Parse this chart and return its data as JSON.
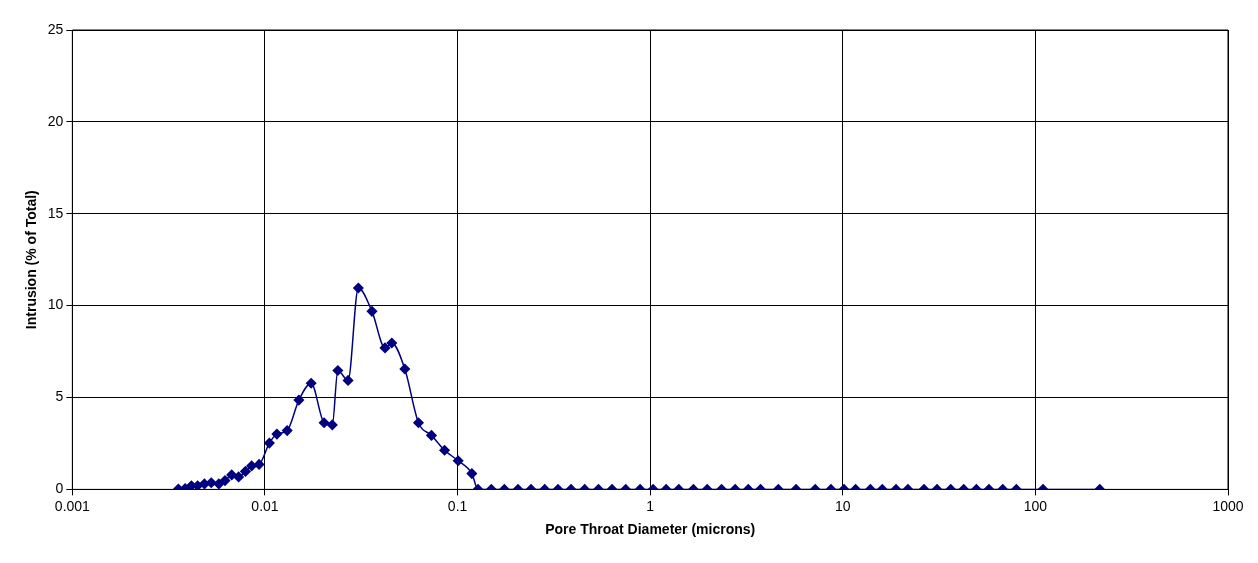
{
  "chart_data": {
    "type": "line",
    "xlabel": "Pore Throat Diameter (microns)",
    "ylabel": "Intrusion (% of Total)",
    "log": "x",
    "xlim": [
      0.001,
      1000
    ],
    "xticks": [
      0.001,
      0.01,
      0.1,
      1,
      10,
      100,
      1000
    ],
    "ylim": [
      0,
      25
    ],
    "yticks": [
      0,
      5,
      10,
      15,
      20,
      25
    ],
    "grid": true,
    "legend": false,
    "marker": "diamond",
    "line_style": "solid",
    "x": [
      0.00355,
      0.00385,
      0.00415,
      0.00447,
      0.00485,
      0.00526,
      0.00576,
      0.0062,
      0.00672,
      0.0073,
      0.00792,
      0.00853,
      0.00932,
      0.01054,
      0.01153,
      0.01304,
      0.015,
      0.01737,
      0.02027,
      0.02236,
      0.02389,
      0.027,
      0.03053,
      0.03594,
      0.04201,
      0.04555,
      0.05323,
      0.06266,
      0.07322,
      0.08557,
      0.1007,
      0.1186,
      0.1277,
      0.1497,
      0.175,
      0.206,
      0.2407,
      0.2835,
      0.3323,
      0.3884,
      0.4573,
      0.5389,
      0.6342,
      0.7468,
      0.8868,
      1.036,
      1.211,
      1.408,
      1.678,
      1.978,
      2.349,
      2.764,
      3.231,
      3.743,
      4.628,
      5.722,
      7.196,
      8.686,
      10.15,
      11.66,
      13.91,
      16.04,
      18.9,
      21.79,
      26.42,
      30.87,
      36.36,
      42.47,
      49.4,
      57.43,
      67.71,
      79.68,
      109.6,
      216
    ],
    "series": [
      {
        "color": "#000080",
        "values": [
          0.02,
          0.05,
          0.2,
          0.2,
          0.3,
          0.36,
          0.3,
          0.48,
          0.79,
          0.68,
          0.98,
          1.28,
          1.36,
          2.52,
          3.01,
          3.2,
          4.86,
          5.78,
          3.63,
          3.51,
          6.47,
          5.93,
          10.96,
          9.69,
          7.7,
          7.97,
          6.55,
          3.63,
          2.94,
          2.13,
          1.56,
          0.86,
          0,
          0,
          0,
          0,
          0,
          0,
          0,
          0,
          0,
          0,
          0,
          0,
          0,
          0,
          0,
          0,
          0,
          0,
          0,
          0,
          0,
          0,
          0,
          0,
          0,
          0,
          0,
          0,
          0,
          0,
          0,
          0,
          0,
          0,
          0,
          0,
          0,
          0,
          0,
          0,
          0,
          0
        ]
      }
    ]
  }
}
